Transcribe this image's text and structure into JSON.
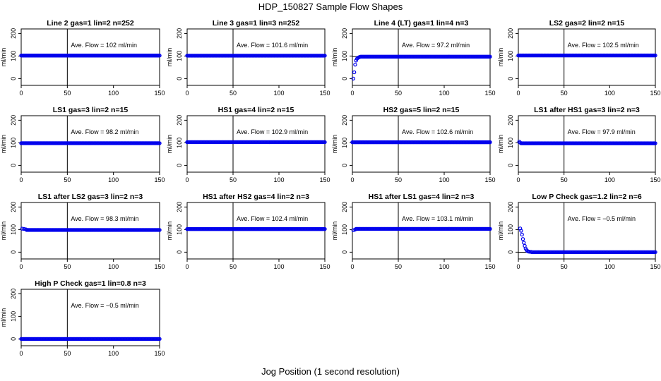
{
  "figure": {
    "title": "HDP_150827  Sample Flow Shapes",
    "xlabel": "Jog Position (1 second resolution)"
  },
  "colors": {
    "points": "#0000ee",
    "axes": "#000000",
    "background": "#ffffff"
  },
  "chart_data": [
    {
      "type": "scatter",
      "title": "Line 2 gas=1 lin=2 n=252",
      "ylabel": "ml/min",
      "annotation": "Ave. Flow =  102  ml/min",
      "xlim": [
        0,
        150
      ],
      "ylim": [
        -30,
        220
      ],
      "xticks": [
        0,
        50,
        100,
        150
      ],
      "yticks": [
        0,
        100,
        200
      ],
      "vline": 50,
      "hline": 102,
      "series": [
        {
          "shape": "flat",
          "x_range": [
            0,
            150
          ],
          "y": 102
        }
      ]
    },
    {
      "type": "scatter",
      "title": "Line 3 gas=1 lin=3 n=252",
      "ylabel": "ml/min",
      "annotation": "Ave. Flow =  101.6  ml/min",
      "xlim": [
        0,
        150
      ],
      "ylim": [
        -30,
        220
      ],
      "xticks": [
        0,
        50,
        100,
        150
      ],
      "yticks": [
        0,
        100,
        200
      ],
      "vline": 50,
      "hline": 101.6,
      "series": [
        {
          "shape": "flat",
          "x_range": [
            0,
            150
          ],
          "y": 101.6
        }
      ]
    },
    {
      "type": "scatter",
      "title": "Line 4 (LT) gas=1 lin=4 n=3",
      "ylabel": "ml/min",
      "annotation": "Ave. Flow =  97.2  ml/min",
      "xlim": [
        0,
        150
      ],
      "ylim": [
        -30,
        220
      ],
      "xticks": [
        0,
        50,
        100,
        150
      ],
      "yticks": [
        0,
        100,
        200
      ],
      "vline": 50,
      "hline": 97.2,
      "series": [
        {
          "shape": "rise",
          "x_range": [
            0,
            150
          ],
          "y": 97.2,
          "lead_points": [
            [
              1,
              0
            ],
            [
              2,
              28
            ],
            [
              3,
              62
            ],
            [
              4,
              80
            ],
            [
              5,
              88
            ],
            [
              6,
              92
            ],
            [
              7,
              94
            ],
            [
              8,
              96
            ]
          ]
        }
      ]
    },
    {
      "type": "scatter",
      "title": "LS2 gas=2 lin=2 n=15",
      "ylabel": "ml/min",
      "annotation": "Ave. Flow =  102.5  ml/min",
      "xlim": [
        0,
        150
      ],
      "ylim": [
        -30,
        220
      ],
      "xticks": [
        0,
        50,
        100,
        150
      ],
      "yticks": [
        0,
        100,
        200
      ],
      "vline": 50,
      "hline": 102.5,
      "series": [
        {
          "shape": "flat",
          "x_range": [
            0,
            150
          ],
          "y": 102.5
        }
      ]
    },
    {
      "type": "scatter",
      "title": "LS1 gas=3 lin=2 n=15",
      "ylabel": "ml/min",
      "annotation": "Ave. Flow =  98.2  ml/min",
      "xlim": [
        0,
        150
      ],
      "ylim": [
        -30,
        220
      ],
      "xticks": [
        0,
        50,
        100,
        150
      ],
      "yticks": [
        0,
        100,
        200
      ],
      "vline": 50,
      "hline": 98.2,
      "series": [
        {
          "shape": "flat",
          "x_range": [
            0,
            150
          ],
          "y": 98.2
        }
      ]
    },
    {
      "type": "scatter",
      "title": "HS1 gas=4 lin=2 n=15",
      "ylabel": "ml/min",
      "annotation": "Ave. Flow =  102.9  ml/min",
      "xlim": [
        0,
        150
      ],
      "ylim": [
        -30,
        220
      ],
      "xticks": [
        0,
        50,
        100,
        150
      ],
      "yticks": [
        0,
        100,
        200
      ],
      "vline": 50,
      "hline": 102.9,
      "series": [
        {
          "shape": "flat",
          "x_range": [
            0,
            150
          ],
          "y": 102.9
        }
      ]
    },
    {
      "type": "scatter",
      "title": "HS2 gas=5 lin=2 n=15",
      "ylabel": "ml/min",
      "annotation": "Ave. Flow =  102.6  ml/min",
      "xlim": [
        0,
        150
      ],
      "ylim": [
        -30,
        220
      ],
      "xticks": [
        0,
        50,
        100,
        150
      ],
      "yticks": [
        0,
        100,
        200
      ],
      "vline": 50,
      "hline": 102.6,
      "series": [
        {
          "shape": "flat",
          "x_range": [
            0,
            150
          ],
          "y": 102.6
        }
      ]
    },
    {
      "type": "scatter",
      "title": "LS1 after HS1 gas=3 lin=2 n=3",
      "ylabel": "ml/min",
      "annotation": "Ave. Flow =  97.9  ml/min",
      "xlim": [
        0,
        150
      ],
      "ylim": [
        -30,
        220
      ],
      "xticks": [
        0,
        50,
        100,
        150
      ],
      "yticks": [
        0,
        100,
        200
      ],
      "vline": 50,
      "hline": 97.9,
      "series": [
        {
          "shape": "settle",
          "x_range": [
            0,
            150
          ],
          "y": 97.9,
          "lead_points": [
            [
              1,
              105
            ],
            [
              2,
              101
            ]
          ]
        }
      ]
    },
    {
      "type": "scatter",
      "title": "LS1 after LS2 gas=3 lin=2 n=3",
      "ylabel": "ml/min",
      "annotation": "Ave. Flow =  98.3  ml/min",
      "xlim": [
        0,
        150
      ],
      "ylim": [
        -30,
        220
      ],
      "xticks": [
        0,
        50,
        100,
        150
      ],
      "yticks": [
        0,
        100,
        200
      ],
      "vline": 50,
      "hline": 98.3,
      "series": [
        {
          "shape": "settle",
          "x_range": [
            0,
            150
          ],
          "y": 98.3,
          "lead_points": [
            [
              1,
              104
            ],
            [
              3,
              103
            ],
            [
              5,
              101
            ]
          ]
        }
      ]
    },
    {
      "type": "scatter",
      "title": "HS1 after HS2 gas=4 lin=2 n=3",
      "ylabel": "ml/min",
      "annotation": "Ave. Flow =  102.4  ml/min",
      "xlim": [
        0,
        150
      ],
      "ylim": [
        -30,
        220
      ],
      "xticks": [
        0,
        50,
        100,
        150
      ],
      "yticks": [
        0,
        100,
        200
      ],
      "vline": 50,
      "hline": 102.4,
      "series": [
        {
          "shape": "flat",
          "x_range": [
            0,
            150
          ],
          "y": 102.4
        }
      ]
    },
    {
      "type": "scatter",
      "title": "HS1 after LS1 gas=4 lin=2 n=3",
      "ylabel": "ml/min",
      "annotation": "Ave. Flow =  103.1  ml/min",
      "xlim": [
        0,
        150
      ],
      "ylim": [
        -30,
        220
      ],
      "xticks": [
        0,
        50,
        100,
        150
      ],
      "yticks": [
        0,
        100,
        200
      ],
      "vline": 50,
      "hline": 103.1,
      "series": [
        {
          "shape": "settle",
          "x_range": [
            0,
            150
          ],
          "y": 103.1,
          "lead_points": [
            [
              1,
              97
            ],
            [
              3,
              100
            ]
          ]
        }
      ]
    },
    {
      "type": "scatter",
      "title": "Low P Check gas=1.2 lin=2 n=6",
      "ylabel": "ml/min",
      "annotation": "Ave. Flow =  −0.5  ml/min",
      "xlim": [
        0,
        150
      ],
      "ylim": [
        -30,
        220
      ],
      "xticks": [
        0,
        50,
        100,
        150
      ],
      "yticks": [
        0,
        100,
        200
      ],
      "vline": 50,
      "hline": -0.5,
      "series": [
        {
          "shape": "decay",
          "x_range": [
            0,
            150
          ],
          "y": 0,
          "lead_points": [
            [
              2,
              105
            ],
            [
              3,
              95
            ],
            [
              4,
              78
            ],
            [
              5,
              58
            ],
            [
              6,
              42
            ],
            [
              7,
              28
            ],
            [
              8,
              16
            ],
            [
              9,
              9
            ],
            [
              10,
              5
            ],
            [
              11,
              3
            ],
            [
              12,
              2
            ],
            [
              14,
              1
            ]
          ]
        }
      ]
    },
    {
      "type": "scatter",
      "title": "High P Check gas=1 lin=0.8 n=3",
      "ylabel": "ml/min",
      "annotation": "Ave. Flow =  −0.5  ml/min",
      "xlim": [
        0,
        150
      ],
      "ylim": [
        -30,
        220
      ],
      "xticks": [
        0,
        50,
        100,
        150
      ],
      "yticks": [
        0,
        100,
        200
      ],
      "vline": 50,
      "hline": -0.5,
      "series": [
        {
          "shape": "flat",
          "x_range": [
            0,
            150
          ],
          "y": 0
        }
      ]
    }
  ]
}
